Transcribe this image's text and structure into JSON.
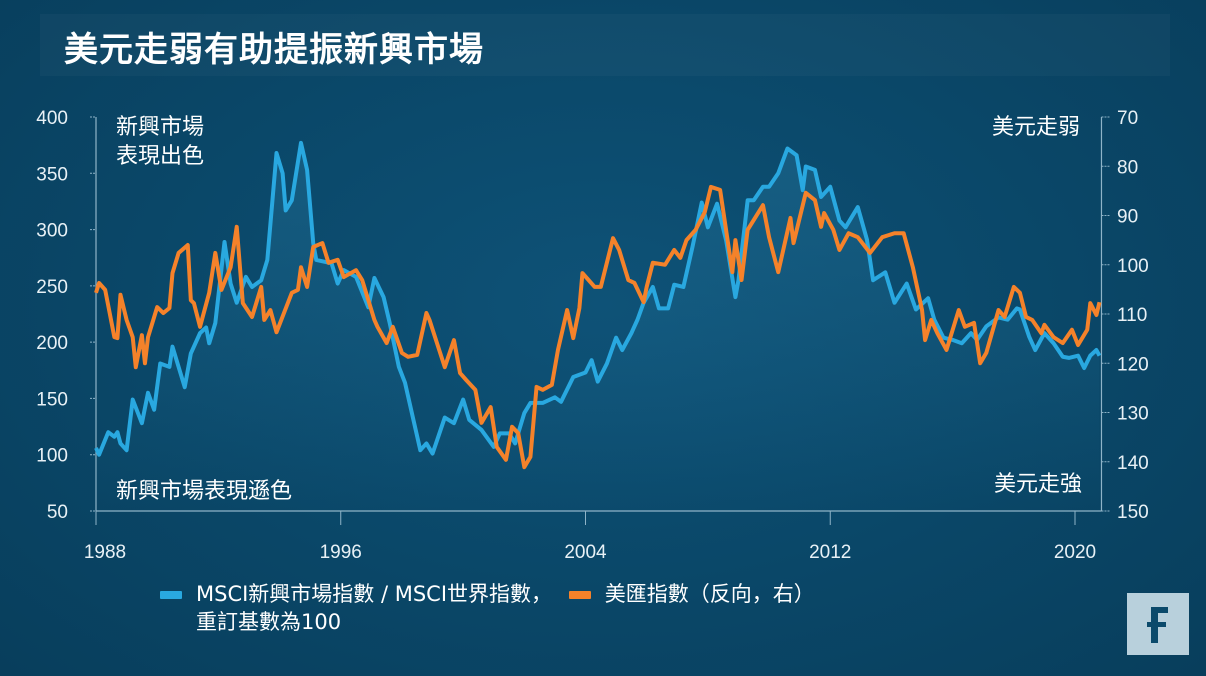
{
  "title": "美元走弱有助提振新興市場",
  "annotations": {
    "top_left": [
      "新興市場",
      "表現出色"
    ],
    "bottom_left": "新興市場表現遜色",
    "top_right": "美元走弱",
    "bottom_right": "美元走強"
  },
  "legend": {
    "blue_line1": "MSCI新興市場指數 / MSCI世界指數，",
    "blue_line2": "重訂基數為100",
    "orange": "美匯指數（反向，右）"
  },
  "logo": "F",
  "chart_data": {
    "type": "line",
    "title": "美元走弱有助提振新興市場",
    "xlabel": "",
    "ylabel": "",
    "y2label": "",
    "xlim": [
      1988,
      2020.8
    ],
    "x_ticks": [
      "1988",
      "1996",
      "2004",
      "2012",
      "2020"
    ],
    "ylim": [
      50,
      400
    ],
    "y_ticks": [
      "400",
      "350",
      "300",
      "250",
      "200",
      "150",
      "100",
      "50"
    ],
    "y2lim": [
      70,
      150
    ],
    "y2_inverted": true,
    "y2_ticks": [
      "70",
      "80",
      "90",
      "100",
      "110",
      "120",
      "130",
      "140",
      "150"
    ],
    "grid": false,
    "legend_position": "bottom",
    "colors": {
      "blue": "#29a8e0",
      "orange": "#f5822a",
      "background": "#0a4768"
    },
    "series": [
      {
        "name": "MSCI新興市場指數 / MSCI世界指數，重訂基數為100",
        "axis": "left",
        "x": [
          1988.0,
          1988.1,
          1988.4,
          1988.6,
          1988.7,
          1988.8,
          1989.0,
          1989.2,
          1989.5,
          1989.7,
          1989.9,
          1990.1,
          1990.4,
          1990.5,
          1990.9,
          1991.1,
          1991.4,
          1991.6,
          1991.7,
          1991.9,
          1992.2,
          1992.4,
          1992.6,
          1992.9,
          1993.1,
          1993.4,
          1993.6,
          1993.9,
          1994.1,
          1994.2,
          1994.4,
          1994.7,
          1994.9,
          1995.1,
          1995.2,
          1995.7,
          1995.9,
          1996.1,
          1996.5,
          1996.9,
          1997.1,
          1997.4,
          1997.6,
          1997.9,
          1998.1,
          1998.4,
          1998.6,
          1998.8,
          1999.0,
          1999.4,
          1999.7,
          2000.0,
          2000.2,
          2000.6,
          2001.0,
          2001.2,
          2001.5,
          2001.7,
          2002.0,
          2002.2,
          2002.6,
          2003.0,
          2003.2,
          2003.6,
          2004.0,
          2004.2,
          2004.4,
          2004.7,
          2005.0,
          2005.2,
          2005.5,
          2005.7,
          2005.9,
          2006.2,
          2006.4,
          2006.7,
          2006.9,
          2007.2,
          2007.5,
          2007.8,
          2008.0,
          2008.3,
          2008.6,
          2008.9,
          2009.0,
          2009.3,
          2009.5,
          2009.8,
          2010.0,
          2010.3,
          2010.6,
          2010.9,
          2011.1,
          2011.2,
          2011.5,
          2011.7,
          2012.0,
          2012.3,
          2012.5,
          2012.9,
          2013.2,
          2013.4,
          2013.8,
          2014.1,
          2014.5,
          2014.8,
          2015.2,
          2015.4,
          2015.7,
          2016.0,
          2016.3,
          2016.6,
          2016.8,
          2017.1,
          2017.5,
          2017.8,
          2018.1,
          2018.2,
          2018.5,
          2018.7,
          2019.0,
          2019.3,
          2019.6,
          2019.8,
          2020.1,
          2020.3,
          2020.5,
          2020.7,
          2020.8
        ],
        "values": [
          106,
          100,
          120,
          116,
          120,
          110,
          104,
          149,
          128,
          155,
          140,
          181,
          178,
          196,
          160,
          190,
          208,
          213,
          199,
          217,
          289,
          252,
          235,
          258,
          249,
          255,
          273,
          368,
          350,
          317,
          326,
          377,
          353,
          288,
          273,
          270,
          252,
          264,
          258,
          231,
          257,
          240,
          217,
          178,
          164,
          128,
          104,
          110,
          101,
          133,
          128,
          149,
          131,
          122,
          107,
          119,
          119,
          110,
          137,
          146,
          146,
          151,
          147,
          169,
          173,
          184,
          165,
          181,
          204,
          193,
          208,
          220,
          235,
          249,
          230,
          230,
          251,
          249,
          285,
          324,
          302,
          323,
          290,
          240,
          255,
          326,
          326,
          338,
          338,
          350,
          372,
          366,
          335,
          356,
          353,
          329,
          338,
          308,
          302,
          320,
          291,
          255,
          262,
          235,
          252,
          229,
          239,
          220,
          204,
          202,
          199,
          208,
          202,
          214,
          222,
          220,
          230,
          229,
          205,
          193,
          208,
          199,
          187,
          186,
          188,
          177,
          188,
          193,
          188
        ]
      },
      {
        "name": "美匯指數（反向，右）",
        "axis": "right",
        "x": [
          1988.0,
          1988.1,
          1988.3,
          1988.6,
          1988.7,
          1988.8,
          1989.0,
          1989.2,
          1989.3,
          1989.5,
          1989.6,
          1989.7,
          1990.0,
          1990.2,
          1990.4,
          1990.5,
          1990.7,
          1991.0,
          1991.1,
          1991.2,
          1991.4,
          1991.7,
          1991.9,
          1992.1,
          1992.4,
          1992.6,
          1992.8,
          1993.1,
          1993.4,
          1993.5,
          1993.7,
          1993.9,
          1994.4,
          1994.6,
          1994.7,
          1994.9,
          1995.1,
          1995.4,
          1995.6,
          1995.9,
          1996.1,
          1996.5,
          1996.7,
          1997.1,
          1997.2,
          1997.5,
          1997.7,
          1998.0,
          1998.2,
          1998.5,
          1998.8,
          1998.9,
          1999.4,
          1999.7,
          1999.9,
          2000.1,
          2000.4,
          2000.6,
          2000.9,
          2001.1,
          2001.4,
          2001.6,
          2001.8,
          2002.0,
          2002.2,
          2002.4,
          2002.6,
          2002.9,
          2003.1,
          2003.4,
          2003.6,
          2003.8,
          2003.9,
          2004.3,
          2004.5,
          2004.9,
          2005.1,
          2005.4,
          2005.6,
          2005.9,
          2006.0,
          2006.2,
          2006.6,
          2006.9,
          2007.1,
          2007.3,
          2007.6,
          2007.9,
          2008.1,
          2008.4,
          2008.8,
          2008.9,
          2009.1,
          2009.3,
          2009.8,
          2010.0,
          2010.3,
          2010.7,
          2010.8,
          2011.2,
          2011.5,
          2011.7,
          2011.8,
          2012.1,
          2012.3,
          2012.6,
          2012.9,
          2013.3,
          2013.7,
          2014.1,
          2014.4,
          2014.7,
          2015.0,
          2015.1,
          2015.3,
          2015.5,
          2015.8,
          2016.2,
          2016.4,
          2016.7,
          2016.9,
          2017.1,
          2017.5,
          2017.7,
          2018.0,
          2018.2,
          2018.4,
          2018.6,
          2018.9,
          2019.0,
          2019.3,
          2019.6,
          2019.9,
          2020.1,
          2020.4,
          2020.5,
          2020.7,
          2020.8
        ],
        "values": [
          105.7,
          103.7,
          105.1,
          114.7,
          114.9,
          106.1,
          111.2,
          114.7,
          120.8,
          114.3,
          120,
          114.7,
          108.6,
          109.8,
          108.8,
          101.7,
          97.6,
          96,
          107.2,
          107.8,
          112.6,
          105.7,
          97.6,
          105.1,
          100.5,
          92.3,
          107.8,
          110.6,
          104.5,
          111.2,
          109.2,
          113.7,
          105.7,
          105.1,
          100.5,
          104.5,
          96.4,
          95.6,
          99.6,
          99,
          102.5,
          101.1,
          103.1,
          111.2,
          112.6,
          115.9,
          112.6,
          117.9,
          118.7,
          118.3,
          109.8,
          111.2,
          120.8,
          115.3,
          122,
          123.4,
          125.4,
          132.1,
          128.9,
          137,
          139.6,
          132.9,
          134.2,
          141.1,
          139,
          124.8,
          125.4,
          124.4,
          117.3,
          109.2,
          114.9,
          108.8,
          101.7,
          104.5,
          104.5,
          94.6,
          97,
          103.1,
          103.7,
          107.6,
          104.5,
          99.6,
          100,
          97,
          98.6,
          95,
          92.9,
          89.3,
          84.2,
          84.8,
          101.5,
          95,
          103.1,
          92.9,
          87.9,
          94.4,
          101.5,
          90.5,
          95.6,
          85.4,
          86.9,
          92.3,
          89.5,
          92.9,
          97,
          93.6,
          94.4,
          97.6,
          94.4,
          93.6,
          93.6,
          100.5,
          109.2,
          115.3,
          111.2,
          113.9,
          117.3,
          109.2,
          112.6,
          111.8,
          120,
          117.9,
          109.2,
          110.6,
          104.5,
          105.7,
          110.6,
          111.2,
          113.9,
          112.2,
          114.7,
          115.9,
          113.2,
          116.3,
          113.2,
          107.8,
          110.2,
          107.6
        ]
      }
    ]
  }
}
